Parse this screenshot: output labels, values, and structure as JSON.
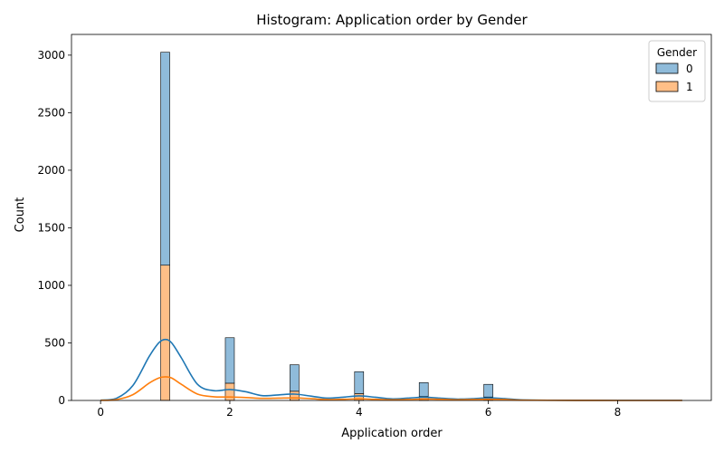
{
  "chart_data": {
    "type": "bar",
    "title": "Histogram: Application order by Gender",
    "xlabel": "Application order",
    "ylabel": "Count",
    "xlim": [
      -0.45,
      9.45
    ],
    "ylim": [
      0,
      3180
    ],
    "xticks": [
      0,
      2,
      4,
      6,
      8
    ],
    "yticks": [
      0,
      500,
      1000,
      1500,
      2000,
      2500,
      3000
    ],
    "bin_width": 0.14,
    "stacking": "stacked",
    "legend": {
      "title": "Gender",
      "position": "top-right"
    },
    "colors": {
      "0": "#1f77b4",
      "1": "#ff7f0e"
    },
    "x": [
      1,
      2,
      3,
      4,
      5,
      6
    ],
    "series": [
      {
        "name": "1",
        "values": [
          1175,
          150,
          80,
          60,
          35,
          30
        ]
      },
      {
        "name": "0",
        "values": [
          1850,
          395,
          230,
          190,
          120,
          110
        ]
      }
    ],
    "kde": {
      "x": [
        0,
        0.25,
        0.5,
        0.75,
        0.9,
        1.0,
        1.1,
        1.25,
        1.5,
        1.75,
        2.0,
        2.25,
        2.5,
        2.75,
        3.0,
        3.25,
        3.5,
        3.75,
        4.0,
        4.25,
        4.5,
        4.75,
        5.0,
        5.25,
        5.5,
        5.75,
        6.0,
        6.25,
        6.5,
        7.0,
        8.0,
        9.0
      ],
      "series": [
        {
          "name": "0",
          "values": [
            2,
            20,
            130,
            380,
            500,
            530,
            500,
            370,
            140,
            85,
            95,
            75,
            42,
            48,
            55,
            38,
            20,
            28,
            40,
            28,
            14,
            20,
            28,
            20,
            12,
            15,
            22,
            16,
            6,
            2,
            1,
            1
          ]
        },
        {
          "name": "1",
          "values": [
            1,
            8,
            50,
            150,
            195,
            205,
            195,
            140,
            55,
            32,
            30,
            25,
            18,
            20,
            22,
            16,
            8,
            10,
            14,
            10,
            6,
            8,
            12,
            10,
            6,
            8,
            10,
            8,
            3,
            1,
            0,
            0
          ]
        }
      ]
    }
  }
}
